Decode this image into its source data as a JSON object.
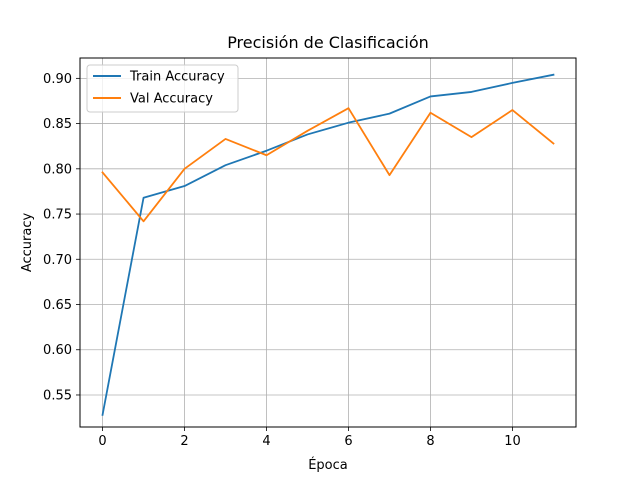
{
  "chart_data": {
    "type": "line",
    "title": "Precisión de Clasificación",
    "xlabel": "Época",
    "ylabel": "Accuracy",
    "x": [
      0,
      1,
      2,
      3,
      4,
      5,
      6,
      7,
      8,
      9,
      10,
      11
    ],
    "xlim": [
      -0.55,
      11.55
    ],
    "ylim": [
      0.5146,
      0.9225
    ],
    "xticks": [
      0,
      2,
      4,
      6,
      8,
      10
    ],
    "xtick_labels": [
      "0",
      "2",
      "4",
      "6",
      "8",
      "10"
    ],
    "yticks": [
      0.55,
      0.6,
      0.65,
      0.7,
      0.75,
      0.8,
      0.85,
      0.9
    ],
    "ytick_labels": [
      "0.55",
      "0.60",
      "0.65",
      "0.70",
      "0.75",
      "0.80",
      "0.85",
      "0.90"
    ],
    "grid": true,
    "legend_position": "top-left",
    "series": [
      {
        "name": "Train Accuracy",
        "color": "#1f77b4",
        "values": [
          0.528,
          0.768,
          0.781,
          0.804,
          0.82,
          0.838,
          0.851,
          0.861,
          0.88,
          0.885,
          0.895,
          0.904
        ]
      },
      {
        "name": "Val Accuracy",
        "color": "#ff7f0e",
        "values": [
          0.796,
          0.742,
          0.8,
          0.833,
          0.815,
          0.842,
          0.867,
          0.793,
          0.862,
          0.835,
          0.865,
          0.828
        ]
      }
    ]
  }
}
